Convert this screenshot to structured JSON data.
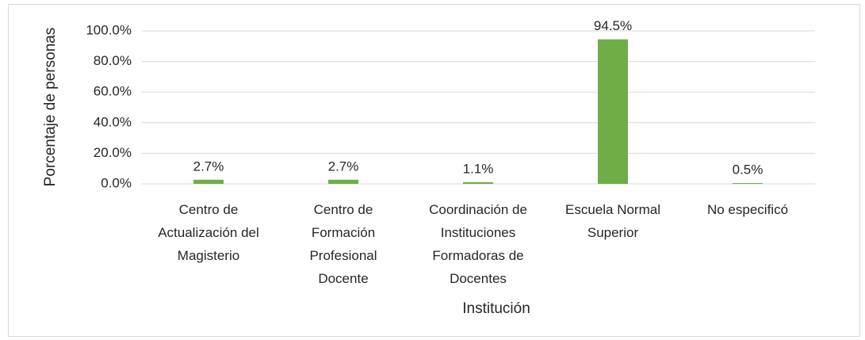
{
  "chart_data": {
    "type": "bar",
    "y_label": "Porcentaje de personas",
    "x_label": "Institución",
    "categories": [
      "Centro de Actualización del Magisterio",
      "Centro de Formación Profesional Docente",
      "Coordinación de Instituciones Formadoras de Docentes",
      "Escuela Normal Superior",
      "No especificó"
    ],
    "values": [
      2.7,
      2.7,
      1.1,
      94.5,
      0.5
    ],
    "value_labels": [
      "2.7%",
      "2.7%",
      "1.1%",
      "94.5%",
      "0.5%"
    ],
    "color": "#70ad47",
    "ylim": [
      0,
      100
    ],
    "yticks": [
      {
        "value": 0,
        "label": "0.0%"
      },
      {
        "value": 20,
        "label": "20.0%"
      },
      {
        "value": 40,
        "label": "40.0%"
      },
      {
        "value": 60,
        "label": "60.0%"
      },
      {
        "value": 80,
        "label": "80.0%"
      },
      {
        "value": 100,
        "label": "100.0%"
      }
    ],
    "grid": true
  }
}
